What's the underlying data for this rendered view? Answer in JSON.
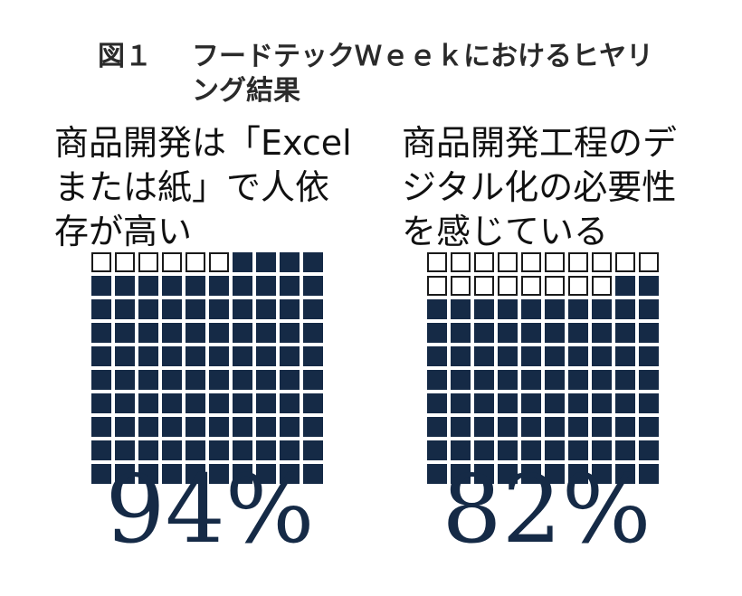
{
  "figure_label": "図１",
  "figure_title": "フードテックＷｅｅｋにおけるヒヤリング結果",
  "chart_data": [
    {
      "type": "waffle",
      "title": "商品開発は「Excelまたは紙」で人依存が高い",
      "grid": [
        10,
        10
      ],
      "value_percent": 94,
      "label": "94%",
      "filled_color": "#152a46"
    },
    {
      "type": "waffle",
      "title": "商品開発工程のデジタル化の必要性を感じている",
      "grid": [
        10,
        10
      ],
      "value_percent": 82,
      "label": "82%",
      "filled_color": "#152a46"
    }
  ]
}
